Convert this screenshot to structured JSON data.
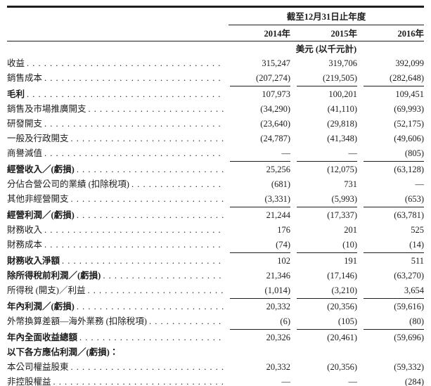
{
  "table": {
    "period_header": "截至12月31日止年度",
    "unit_note": "美元 (以千元計)",
    "columns": [
      "2014年",
      "2015年",
      "2016年"
    ],
    "rows": [
      {
        "label": "收益",
        "bold": false,
        "dots": true,
        "underline": false,
        "values": [
          "315,247",
          "319,706",
          "392,099"
        ]
      },
      {
        "label": "銷售成本",
        "bold": false,
        "dots": true,
        "underline": true,
        "values": [
          "(207,274)",
          "(219,505)",
          "(282,648)"
        ]
      },
      {
        "label": "毛利",
        "bold": true,
        "dots": true,
        "underline": false,
        "values": [
          "107,973",
          "100,201",
          "109,451"
        ]
      },
      {
        "label": "銷售及市場推廣開支",
        "bold": false,
        "dots": true,
        "underline": false,
        "values": [
          "(34,290)",
          "(41,110)",
          "(69,993)"
        ]
      },
      {
        "label": "研發開支",
        "bold": false,
        "dots": true,
        "underline": false,
        "values": [
          "(23,640)",
          "(29,818)",
          "(52,175)"
        ]
      },
      {
        "label": "一般及行政開支",
        "bold": false,
        "dots": true,
        "underline": false,
        "values": [
          "(24,787)",
          "(41,348)",
          "(49,606)"
        ]
      },
      {
        "label": "商譽減值",
        "bold": false,
        "dots": true,
        "underline": true,
        "values": [
          "—",
          "—",
          "(805)"
        ]
      },
      {
        "label": "經營收入／(虧損)",
        "bold": true,
        "dots": true,
        "underline": false,
        "values": [
          "25,256",
          "(12,075)",
          "(63,128)"
        ]
      },
      {
        "label": "分佔合營公司的業績 (扣除稅項)",
        "bold": false,
        "dots": true,
        "underline": false,
        "values": [
          "(681)",
          "731",
          "—"
        ]
      },
      {
        "label": "其他非經營開支",
        "bold": false,
        "dots": true,
        "underline": true,
        "values": [
          "(3,331)",
          "(5,993)",
          "(653)"
        ]
      },
      {
        "label": "經營利潤／(虧損)",
        "bold": true,
        "dots": true,
        "underline": false,
        "values": [
          "21,244",
          "(17,337)",
          "(63,781)"
        ]
      },
      {
        "label": "財務收入",
        "bold": false,
        "dots": true,
        "underline": false,
        "values": [
          "176",
          "201",
          "525"
        ]
      },
      {
        "label": "財務成本",
        "bold": false,
        "dots": true,
        "underline": true,
        "values": [
          "(74)",
          "(10)",
          "(14)"
        ]
      },
      {
        "label": "財務收入淨額",
        "bold": true,
        "dots": true,
        "underline": false,
        "values": [
          "102",
          "191",
          "511"
        ]
      },
      {
        "label": "除所得稅前利潤／(虧損)",
        "bold": true,
        "dots": true,
        "underline": false,
        "values": [
          "21,346",
          "(17,146)",
          "(63,270)"
        ]
      },
      {
        "label": "所得稅 (開支)／利益",
        "bold": false,
        "dots": true,
        "underline": true,
        "values": [
          "(1,014)",
          "(3,210)",
          "3,654"
        ]
      },
      {
        "label": "年內利潤／(虧損)",
        "bold": true,
        "dots": true,
        "underline": false,
        "values": [
          "20,332",
          "(20,356)",
          "(59,616)"
        ]
      },
      {
        "label": "外幣換算差額—海外業務 (扣除稅項)",
        "bold": false,
        "dots": true,
        "underline": true,
        "values": [
          "(6)",
          "(105)",
          "(80)"
        ]
      },
      {
        "label": "年內全面收益總額",
        "bold": true,
        "dots": true,
        "underline": false,
        "values": [
          "20,326",
          "(20,461)",
          "(59,696)"
        ]
      },
      {
        "label": "以下各方應佔利潤／(虧損)：",
        "bold": true,
        "dots": false,
        "underline": false,
        "values": [
          "",
          "",
          ""
        ]
      },
      {
        "label": "本公司權益股東",
        "bold": false,
        "dots": true,
        "underline": false,
        "values": [
          "20,332",
          "(20,356)",
          "(59,332)"
        ]
      },
      {
        "label": "非控股權益",
        "bold": false,
        "dots": true,
        "underline": true,
        "values": [
          "—",
          "—",
          "(284)"
        ]
      }
    ]
  },
  "colors": {
    "text": "#1c1c1c",
    "rule": "#1d1d1d",
    "background": "#ffffff"
  }
}
